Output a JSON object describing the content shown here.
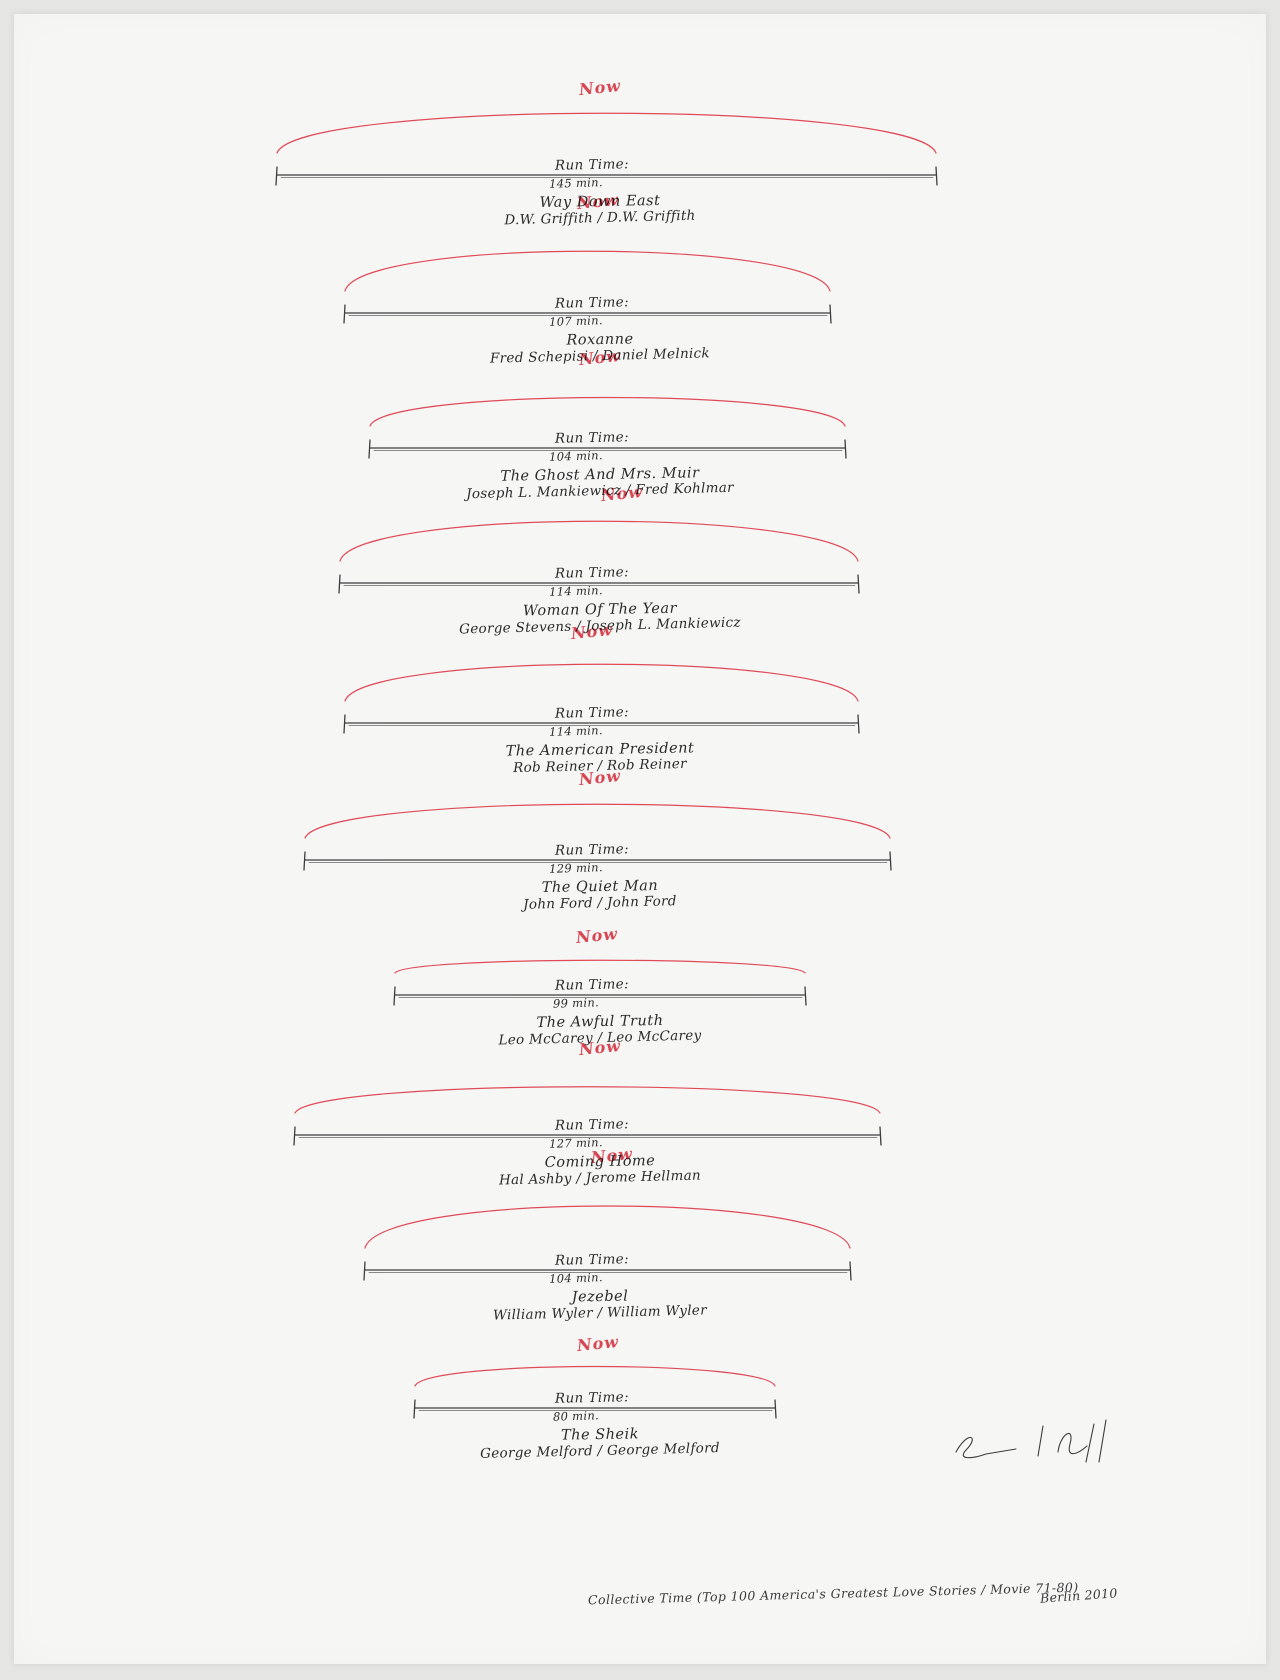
{
  "artwork": {
    "caption": "Collective Time (Top 100 America's Greatest Love Stories / Movie 71-80)",
    "inscription": "Berlin 2010",
    "colors": {
      "red_ink": "#e04a58",
      "black_ink": "#3d3d3d",
      "black_ink_light": "#7a7a7a"
    },
    "entries": [
      {
        "now": "Now",
        "run_time_label": "Run Time:",
        "runtime": "145 min.",
        "title": "Way Down East",
        "credits": "D.W. Griffith / D.W. Griffith"
      },
      {
        "now": "Now",
        "run_time_label": "Run Time:",
        "runtime": "107 min.",
        "title": "Roxanne",
        "credits": "Fred Schepisi / Daniel Melnick"
      },
      {
        "now": "Now",
        "run_time_label": "Run Time:",
        "runtime": "104 min.",
        "title": "The Ghost And Mrs. Muir",
        "credits": "Joseph L. Mankiewicz / Fred Kohlmar"
      },
      {
        "now": "Now",
        "run_time_label": "Run Time:",
        "runtime": "114 min.",
        "title": "Woman Of The Year",
        "credits": "George Stevens / Joseph L. Mankiewicz"
      },
      {
        "now": "Now",
        "run_time_label": "Run Time:",
        "runtime": "114 min.",
        "title": "The American President",
        "credits": "Rob Reiner / Rob Reiner"
      },
      {
        "now": "Now",
        "run_time_label": "Run Time:",
        "runtime": "129 min.",
        "title": "The Quiet Man",
        "credits": "John Ford / John Ford"
      },
      {
        "now": "Now",
        "run_time_label": "Run Time:",
        "runtime": "99 min.",
        "title": "The Awful Truth",
        "credits": "Leo McCarey / Leo McCarey"
      },
      {
        "now": "Now",
        "run_time_label": "Run Time:",
        "runtime": "127 min.",
        "title": "Coming Home",
        "credits": "Hal Ashby / Jerome Hellman"
      },
      {
        "now": "Now",
        "run_time_label": "Run Time:",
        "runtime": "104 min.",
        "title": "Jezebel",
        "credits": "William Wyler / William Wyler"
      },
      {
        "now": "Now",
        "run_time_label": "Run Time:",
        "runtime": "80 min.",
        "title": "The Sheik",
        "credits": "George Melford / George Melford"
      }
    ]
  }
}
